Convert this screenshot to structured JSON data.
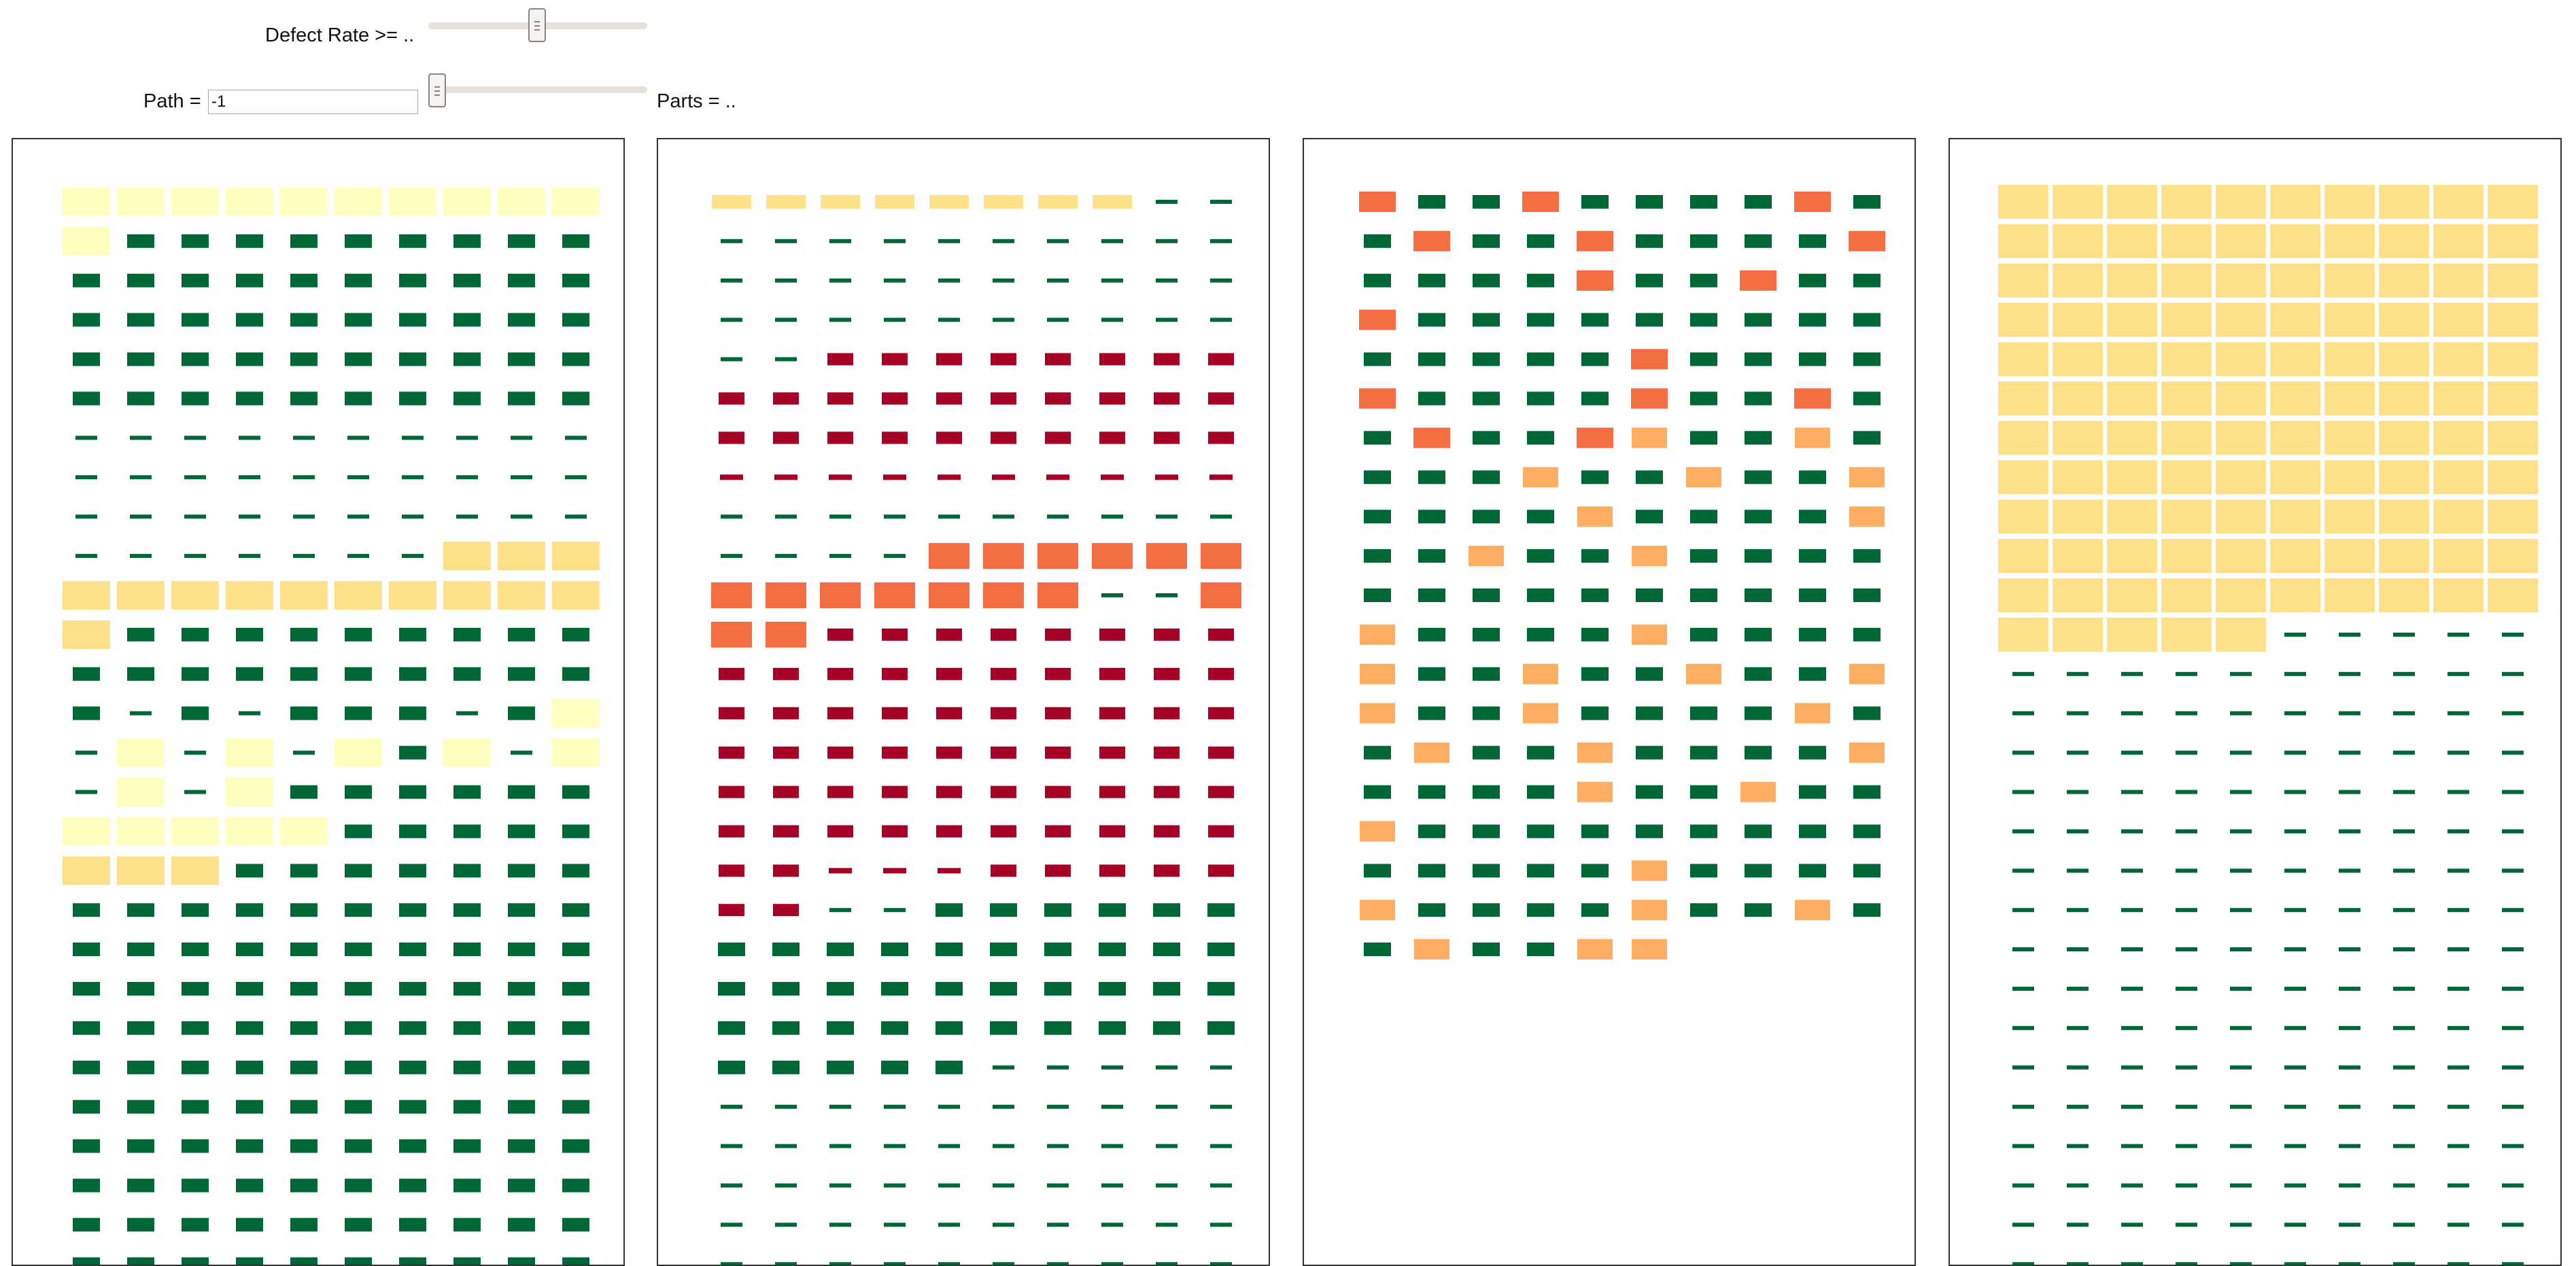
{
  "controls": {
    "defect_rate": {
      "label": "Defect Rate >= ..",
      "value": 0.4
    },
    "path": {
      "label": "Path =",
      "input_value": "-1",
      "slider_value": 0.03
    },
    "parts": {
      "label": "Parts = .."
    }
  },
  "colors": {
    "pale_yellow": "#ffffbf",
    "yellow": "#fee08b",
    "light_orange": "#fdae61",
    "orange": "#f46d43",
    "red": "#a50026",
    "green": "#006837"
  },
  "panels": [
    {
      "id": "panel-1",
      "rows": [
        "YYYYYYYYYY",
        "YGGGGGGGGG",
        "GGGGGGGGGG",
        "GGGGGGGGGG",
        "GGGGGGGGGG",
        "GGGGGGGGGG",
        "gggggggggg",
        "gggggggggg",
        "gggggggggg",
        "gggggggLLL",
        "LLLLLLLLLL",
        "LGGGGGGGGG",
        "GGGGGGGGGG",
        "GgGgGGGgGY",
        "gYgYgYGYgY",
        "gYgYGGGGGG",
        "YYYYYGGGGG",
        "LLLGGGGGGG",
        "GGGGGGGGGG",
        "GGGGGGGGGG",
        "GGGGGGGGGG",
        "GGGGGGGGGG",
        "GGGGGGGGGG",
        "GGGGGGGGGG",
        "GGGGGGGGGG",
        "GGGGGGGGGG",
        "GGGGGGGGGG",
        "GGGGGGGGGG"
      ]
    },
    {
      "id": "panel-2",
      "rows": [
        "LLLLLLLLgg",
        "gggggggggg",
        "gggggggggg",
        "gggggggggg",
        "ggRRRRRRRR",
        "RRRRRRRRRR",
        "RRRRRRRRRR",
        "rrrrrrrrrr",
        "gggggggggg",
        "ggggOOOOOO",
        "OOOOOOOggO",
        "OORRRRRRRR",
        "RRRRRRRRRR",
        "RRRRRRRRRR",
        "RRRRRRRRRR",
        "RRRRRRRRRR",
        "RRRRRRRRRR",
        "RRrrrRRRRR",
        "RRggGGGGGG",
        "GGGGGGGGGG",
        "GGGGGGGGGG",
        "GGGGGGGGGG",
        "GGGGGggggg",
        "gggggggggg",
        "gggggggggg",
        "gggggggggg",
        "gggggggggg",
        "gggggggggg"
      ]
    },
    {
      "id": "panel-3",
      "rows": [
        "OGGOGGGGOG",
        "GOGGOGGGGO",
        "GGGGOGGOGG",
        "OGGGGGGGGG",
        "GGGGGOGGGG",
        "OGGGGOGGOG",
        "GOGGOLGGLG",
        "GGGLGGLGGL",
        "GGGGLGGGGL",
        "GGLGGLGGGG",
        "GGGGGGGGGG",
        "LGGGGLGGGG",
        "LGGLGGLGGL",
        "LGGLGGGGLG",
        "GLGGLGGGGL",
        "GGGGLGGLGG",
        "LGGGGGGGGG",
        "GGGGGLGGGG",
        "LGGGGLGGLG",
        "GLGGLx....",
        "..........",
        "..........",
        "..........",
        "..........",
        "..........",
        "..........",
        "..........",
        ".........."
      ]
    },
    {
      "id": "panel-4",
      "rows": [
        "LLLLLLLLLL",
        "LLLLLLLLLL",
        "LLLLLLLLLL",
        "LLLLLLLLLL",
        "LLLLLLLLLL",
        "LLLLLLLLLL",
        "LLLLLLLLLL",
        "LLLLLLLLLL",
        "LLLLLLLLLL",
        "LLLLLLLLLL",
        "LLLLLLLLLL",
        "LLLLLggggg",
        "gggggggggg",
        "gggggggggg",
        "gggggggggg",
        "gggggggggg",
        "gggggggggg",
        "gggggggggg",
        "gggggggggg",
        "gggggggggg",
        "gggggggggg",
        "gggggggggg",
        "gggggggggg",
        "gggggggggg",
        "gggggggggg",
        "gggggggggg",
        "gggggggggg",
        "gggggggggg"
      ]
    }
  ]
}
